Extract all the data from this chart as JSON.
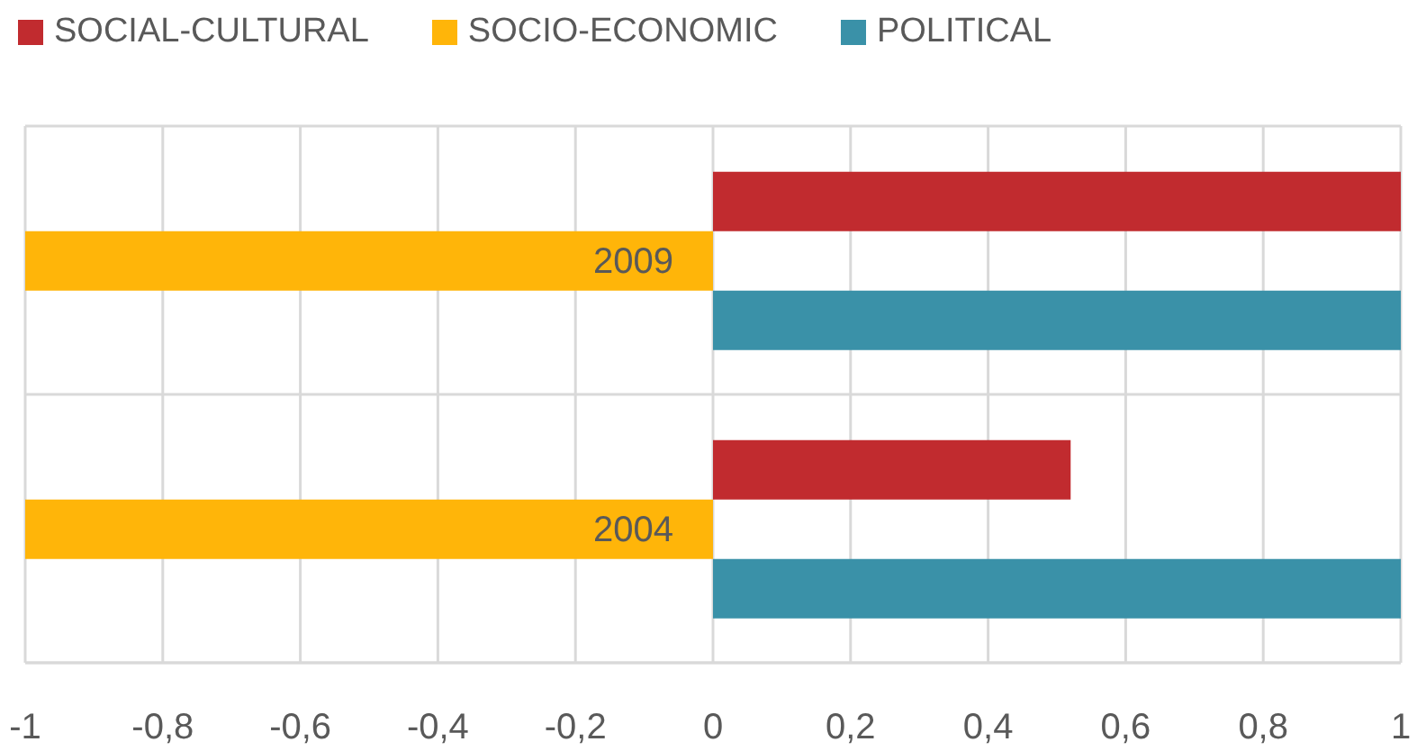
{
  "chart_data": {
    "type": "bar",
    "orientation": "horizontal",
    "categories": [
      "2009",
      "2004"
    ],
    "series": [
      {
        "name": "SOCIAL-CULTURAL",
        "color": "#c12b2f",
        "values": [
          1,
          0.52
        ]
      },
      {
        "name": "SOCIO-ECONOMIC",
        "color": "#ffb509",
        "values": [
          -1,
          -1
        ]
      },
      {
        "name": "POLITICAL",
        "color": "#3a91a8",
        "values": [
          1,
          1
        ]
      }
    ],
    "xlim": [
      -1,
      1
    ],
    "xticks": [
      -1,
      {
        "value": -0.8,
        "label": "-0,8"
      },
      {
        "value": -0.6,
        "label": "-0,6"
      },
      {
        "value": -0.4,
        "label": "-0,4"
      },
      {
        "value": -0.2,
        "label": "-0,2"
      },
      0,
      {
        "value": 0.2,
        "label": "0,2"
      },
      {
        "value": 0.4,
        "label": "0,4"
      },
      {
        "value": 0.6,
        "label": "0,6"
      },
      {
        "value": 0.8,
        "label": "0,8"
      },
      1
    ],
    "grid": true,
    "legend": "top left"
  }
}
